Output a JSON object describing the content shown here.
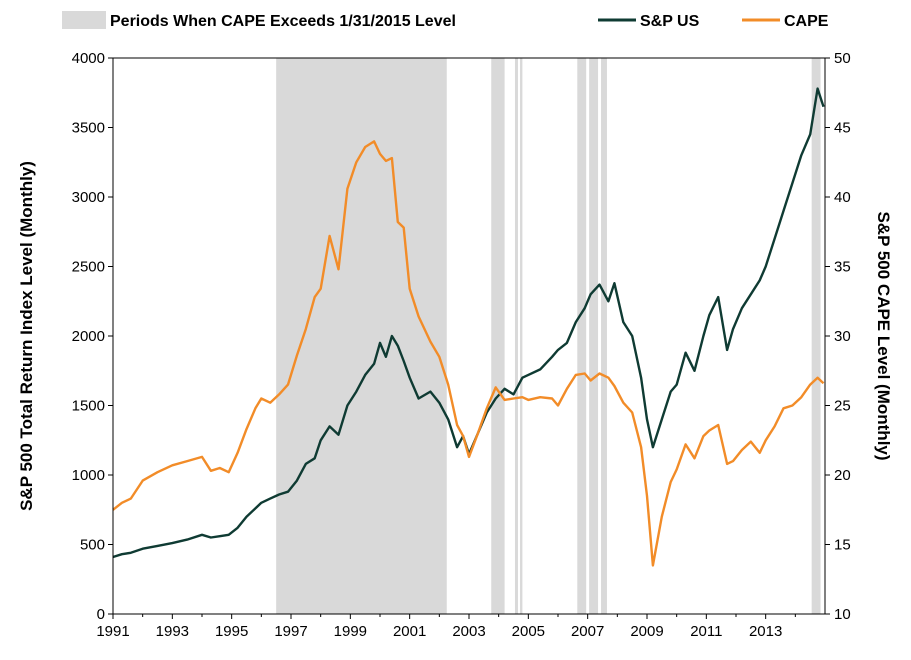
{
  "chart_data": {
    "type": "line",
    "legend": {
      "placement": "top",
      "entries": [
        {
          "label": "Periods When CAPE Exceeds 1/31/2015 Level",
          "kind": "shade",
          "color": "#d9d9d9"
        },
        {
          "label": "S&P US",
          "kind": "line",
          "color": "#0f3b33"
        },
        {
          "label": "CAPE",
          "kind": "line",
          "color": "#f28c28"
        }
      ]
    },
    "ylabel_left": "S&P 500 Total Return Index Level (Monthly)",
    "ylabel_right": "S&P 500 CAPE Level (Monthly)",
    "xlim": [
      1991,
      2015
    ],
    "ylim_left": [
      0,
      4000
    ],
    "ylim_right": [
      10,
      50
    ],
    "x_ticks": [
      "1991",
      "1993",
      "1995",
      "1997",
      "1999",
      "2001",
      "2003",
      "2005",
      "2007",
      "2009",
      "2011",
      "2013"
    ],
    "x_tick_values": [
      1991,
      1993,
      1995,
      1997,
      1999,
      2001,
      2003,
      2005,
      2007,
      2009,
      2011,
      2013
    ],
    "y_ticks_left": [
      "0",
      "500",
      "1000",
      "1500",
      "2000",
      "2500",
      "3000",
      "3500",
      "4000"
    ],
    "y_tick_values_left": [
      0,
      500,
      1000,
      1500,
      2000,
      2500,
      3000,
      3500,
      4000
    ],
    "y_ticks_right": [
      "10",
      "15",
      "20",
      "25",
      "30",
      "35",
      "40",
      "45",
      "50"
    ],
    "y_tick_values_right": [
      10,
      15,
      20,
      25,
      30,
      35,
      40,
      45,
      50
    ],
    "grid": false,
    "shaded_periods": [
      [
        1996.5,
        2002.25
      ],
      [
        2003.75,
        2004.2
      ],
      [
        2004.55,
        2004.65
      ],
      [
        2004.72,
        2004.8
      ],
      [
        2006.65,
        2006.95
      ],
      [
        2007.05,
        2007.35
      ],
      [
        2007.45,
        2007.65
      ],
      [
        2014.55,
        2014.85
      ]
    ],
    "series": [
      {
        "name": "S&P US",
        "axis": "left",
        "color": "#0f3b33",
        "x": [
          1991.0,
          1991.3,
          1991.6,
          1992.0,
          1992.5,
          1993.0,
          1993.5,
          1994.0,
          1994.3,
          1994.6,
          1994.9,
          1995.2,
          1995.5,
          1995.8,
          1996.0,
          1996.3,
          1996.6,
          1996.9,
          1997.2,
          1997.5,
          1997.8,
          1998.0,
          1998.3,
          1998.6,
          1998.9,
          1999.2,
          1999.5,
          1999.8,
          2000.0,
          2000.2,
          2000.4,
          2000.6,
          2000.8,
          2001.0,
          2001.3,
          2001.7,
          2002.0,
          2002.3,
          2002.6,
          2002.8,
          2003.0,
          2003.3,
          2003.6,
          2003.9,
          2004.2,
          2004.5,
          2004.8,
          2005.0,
          2005.4,
          2005.8,
          2006.0,
          2006.3,
          2006.6,
          2006.9,
          2007.1,
          2007.4,
          2007.7,
          2007.9,
          2008.2,
          2008.5,
          2008.8,
          2009.0,
          2009.2,
          2009.5,
          2009.8,
          2010.0,
          2010.3,
          2010.6,
          2010.9,
          2011.1,
          2011.4,
          2011.7,
          2011.9,
          2012.2,
          2012.5,
          2012.8,
          2013.0,
          2013.3,
          2013.6,
          2013.9,
          2014.2,
          2014.5,
          2014.75,
          2014.95
        ],
        "values": [
          410,
          430,
          440,
          470,
          490,
          510,
          535,
          570,
          550,
          560,
          570,
          620,
          700,
          760,
          800,
          830,
          860,
          880,
          960,
          1080,
          1120,
          1250,
          1350,
          1290,
          1500,
          1600,
          1720,
          1800,
          1950,
          1850,
          2000,
          1930,
          1820,
          1700,
          1550,
          1600,
          1520,
          1400,
          1200,
          1280,
          1150,
          1300,
          1450,
          1550,
          1620,
          1580,
          1700,
          1720,
          1760,
          1850,
          1900,
          1950,
          2100,
          2200,
          2300,
          2370,
          2250,
          2380,
          2100,
          2000,
          1700,
          1400,
          1200,
          1400,
          1600,
          1650,
          1880,
          1750,
          2000,
          2150,
          2280,
          1900,
          2050,
          2200,
          2300,
          2400,
          2500,
          2700,
          2900,
          3100,
          3300,
          3450,
          3780,
          3650
        ]
      },
      {
        "name": "CAPE",
        "axis": "right",
        "color": "#f28c28",
        "x": [
          1991.0,
          1991.3,
          1991.6,
          1992.0,
          1992.5,
          1993.0,
          1993.5,
          1994.0,
          1994.3,
          1994.6,
          1994.9,
          1995.2,
          1995.5,
          1995.8,
          1996.0,
          1996.3,
          1996.6,
          1996.9,
          1997.2,
          1997.5,
          1997.8,
          1998.0,
          1998.3,
          1998.6,
          1998.9,
          1999.2,
          1999.5,
          1999.8,
          2000.0,
          2000.2,
          2000.4,
          2000.6,
          2000.8,
          2001.0,
          2001.3,
          2001.7,
          2002.0,
          2002.3,
          2002.6,
          2002.8,
          2003.0,
          2003.3,
          2003.6,
          2003.9,
          2004.2,
          2004.5,
          2004.8,
          2005.0,
          2005.4,
          2005.8,
          2006.0,
          2006.3,
          2006.6,
          2006.9,
          2007.1,
          2007.4,
          2007.7,
          2007.9,
          2008.2,
          2008.5,
          2008.8,
          2009.0,
          2009.2,
          2009.5,
          2009.8,
          2010.0,
          2010.3,
          2010.6,
          2010.9,
          2011.1,
          2011.4,
          2011.7,
          2011.9,
          2012.2,
          2012.5,
          2012.8,
          2013.0,
          2013.3,
          2013.6,
          2013.9,
          2014.2,
          2014.5,
          2014.75,
          2014.95
        ],
        "values": [
          17.5,
          18.0,
          18.3,
          19.6,
          20.2,
          20.7,
          21.0,
          21.3,
          20.3,
          20.5,
          20.2,
          21.6,
          23.3,
          24.8,
          25.5,
          25.2,
          25.8,
          26.5,
          28.6,
          30.5,
          32.8,
          33.4,
          37.2,
          34.8,
          40.6,
          42.5,
          43.6,
          44.0,
          43.1,
          42.6,
          42.8,
          38.2,
          37.8,
          33.4,
          31.4,
          29.6,
          28.5,
          26.5,
          23.6,
          22.8,
          21.3,
          23.0,
          24.8,
          26.3,
          25.4,
          25.5,
          25.6,
          25.4,
          25.6,
          25.5,
          25.0,
          26.2,
          27.2,
          27.3,
          26.8,
          27.3,
          27.0,
          26.4,
          25.2,
          24.5,
          22.0,
          18.5,
          13.5,
          17.0,
          19.5,
          20.4,
          22.2,
          21.2,
          22.8,
          23.2,
          23.6,
          20.8,
          21.0,
          21.8,
          22.4,
          21.6,
          22.5,
          23.5,
          24.8,
          25.0,
          25.6,
          26.5,
          27.0,
          26.6
        ]
      }
    ]
  }
}
